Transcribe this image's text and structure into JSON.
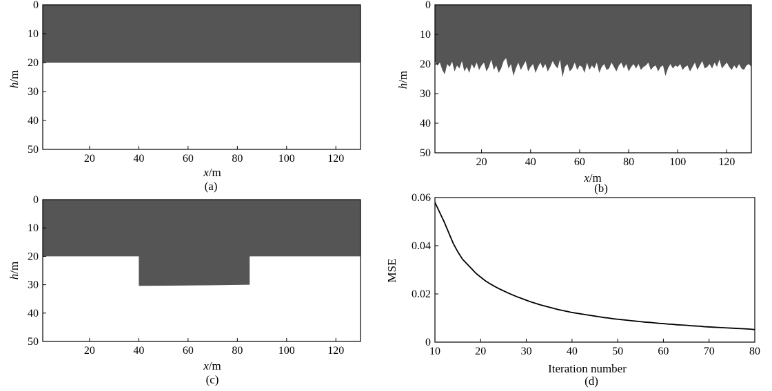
{
  "colors": {
    "layer": "#555555",
    "background": "#ffffff",
    "axis": "#000000",
    "curve": "#000000"
  },
  "chart_data": [
    {
      "id": "a",
      "type": "area",
      "caption": "(a)",
      "xlabel_var": "x",
      "xlabel_unit": "/m",
      "ylabel_var": "h",
      "ylabel_unit": "/m",
      "xlim": [
        1,
        130
      ],
      "ylim": [
        0,
        50
      ],
      "y_inverted": true,
      "xticks": [
        20,
        40,
        60,
        80,
        100,
        120
      ],
      "yticks": [
        0,
        10,
        20,
        30,
        40,
        50
      ],
      "boundary": {
        "x": [
          1,
          130
        ],
        "depth": [
          20,
          20
        ]
      }
    },
    {
      "id": "b",
      "type": "area",
      "caption": "(b)",
      "xlabel_var": "x",
      "xlabel_unit": "/m",
      "ylabel_var": "h",
      "ylabel_unit": "/m",
      "xlim": [
        1,
        130
      ],
      "ylim": [
        0,
        50
      ],
      "y_inverted": true,
      "xticks": [
        20,
        40,
        60,
        80,
        100,
        120
      ],
      "yticks": [
        0,
        10,
        20,
        30,
        40,
        50
      ],
      "boundary": {
        "x": [
          1,
          2,
          3,
          4,
          5,
          6,
          7,
          8,
          9,
          10,
          11,
          12,
          13,
          14,
          15,
          16,
          17,
          18,
          19,
          20,
          21,
          22,
          23,
          24,
          25,
          26,
          27,
          28,
          29,
          30,
          31,
          32,
          33,
          34,
          35,
          36,
          37,
          38,
          39,
          40,
          41,
          42,
          43,
          44,
          45,
          46,
          47,
          48,
          49,
          50,
          51,
          52,
          53,
          54,
          55,
          56,
          57,
          58,
          59,
          60,
          61,
          62,
          63,
          64,
          65,
          66,
          67,
          68,
          69,
          70,
          71,
          72,
          73,
          74,
          75,
          76,
          77,
          78,
          79,
          80,
          81,
          82,
          83,
          84,
          85,
          86,
          87,
          88,
          89,
          90,
          91,
          92,
          93,
          94,
          95,
          96,
          97,
          98,
          99,
          100,
          101,
          102,
          103,
          104,
          105,
          106,
          107,
          108,
          109,
          110,
          111,
          112,
          113,
          114,
          115,
          116,
          117,
          118,
          119,
          120,
          121,
          122,
          123,
          124,
          125,
          126,
          127,
          128,
          129,
          130
        ],
        "depth": [
          19,
          20.5,
          19.5,
          22,
          23.5,
          20,
          21,
          19.2,
          22.5,
          20.5,
          21.5,
          19,
          22.5,
          21,
          23,
          20,
          21.5,
          19.5,
          22,
          20.5,
          19.5,
          22.5,
          21,
          18.5,
          22,
          20.5,
          23,
          21.5,
          19,
          18,
          21.5,
          20,
          24,
          21.5,
          19.5,
          22,
          20.5,
          19,
          22.5,
          21,
          20,
          23,
          21,
          19.5,
          21.5,
          20,
          22.5,
          21,
          19,
          20.5,
          21.5,
          18.5,
          24.5,
          21,
          20,
          22.5,
          21.5,
          19.5,
          22,
          20.5,
          21,
          23,
          19.5,
          22,
          20.5,
          21.5,
          19.5,
          23,
          21,
          20,
          22,
          21.5,
          19.5,
          21,
          22.5,
          20.5,
          19.5,
          21.5,
          20,
          22.5,
          21,
          20,
          21.5,
          20,
          22,
          21,
          20.5,
          19.5,
          22,
          21,
          20.5,
          22.5,
          21,
          20.5,
          24,
          21.5,
          20,
          21.5,
          20.5,
          21,
          20,
          22,
          21,
          20.5,
          22.5,
          21,
          19.5,
          22,
          20.5,
          19,
          21.5,
          21,
          20,
          21.5,
          19.5,
          21,
          18.5,
          21.5,
          20.5,
          19.5,
          21,
          22,
          20.5,
          21.5,
          20,
          21.5,
          22,
          20.5,
          20,
          21
        ]
      }
    },
    {
      "id": "c",
      "type": "area",
      "caption": "(c)",
      "xlabel_var": "x",
      "xlabel_unit": "/m",
      "ylabel_var": "h",
      "ylabel_unit": "/m",
      "xlim": [
        1,
        130
      ],
      "ylim": [
        0,
        50
      ],
      "y_inverted": true,
      "xticks": [
        20,
        40,
        60,
        80,
        100,
        120
      ],
      "yticks": [
        0,
        10,
        20,
        30,
        40,
        50
      ],
      "boundary": {
        "x": [
          1,
          40,
          40,
          55,
          70,
          85,
          85,
          130
        ],
        "depth": [
          20,
          20,
          30.4,
          30.3,
          30.2,
          30,
          20,
          20
        ]
      }
    },
    {
      "id": "d",
      "type": "line",
      "caption": "(d)",
      "xlabel": "Iteration number",
      "ylabel": "MSE",
      "xlim": [
        10,
        80
      ],
      "ylim": [
        0,
        0.06
      ],
      "xticks": [
        10,
        20,
        30,
        40,
        50,
        60,
        70,
        80
      ],
      "yticks": [
        0,
        0.02,
        0.04,
        0.06
      ],
      "ytick_labels": [
        "0",
        "0.02",
        "0.04",
        "0.06"
      ],
      "series": [
        {
          "x": [
            10,
            11,
            12,
            13,
            14,
            15,
            16,
            17,
            18,
            19,
            20,
            21,
            22,
            23,
            24,
            25,
            26,
            27,
            28,
            29,
            30,
            31,
            32,
            33,
            34,
            35,
            36,
            37,
            38,
            39,
            40,
            41,
            42,
            43,
            44,
            45,
            46,
            47,
            48,
            49,
            50,
            51,
            52,
            53,
            54,
            55,
            56,
            57,
            58,
            59,
            60,
            61,
            62,
            63,
            64,
            65,
            66,
            67,
            68,
            69,
            70,
            71,
            72,
            73,
            74,
            75,
            76,
            77,
            78,
            79,
            80
          ],
          "values": [
            0.058,
            0.054,
            0.05,
            0.0455,
            0.041,
            0.0375,
            0.0345,
            0.0325,
            0.0305,
            0.0285,
            0.027,
            0.0255,
            0.0243,
            0.0232,
            0.0222,
            0.0213,
            0.0204,
            0.0196,
            0.0188,
            0.0181,
            0.0174,
            0.0167,
            0.0161,
            0.0155,
            0.015,
            0.0145,
            0.014,
            0.0135,
            0.0131,
            0.0127,
            0.0123,
            0.012,
            0.0117,
            0.0114,
            0.0111,
            0.0108,
            0.0105,
            0.0102,
            0.01,
            0.0097,
            0.0095,
            0.0093,
            0.0091,
            0.0089,
            0.0087,
            0.0085,
            0.0083,
            0.0082,
            0.008,
            0.0078,
            0.0077,
            0.0075,
            0.0074,
            0.0072,
            0.0071,
            0.007,
            0.0068,
            0.0067,
            0.0066,
            0.0064,
            0.0063,
            0.0062,
            0.0061,
            0.006,
            0.0059,
            0.0058,
            0.0057,
            0.0056,
            0.0055,
            0.0054,
            0.0052
          ]
        }
      ]
    }
  ]
}
